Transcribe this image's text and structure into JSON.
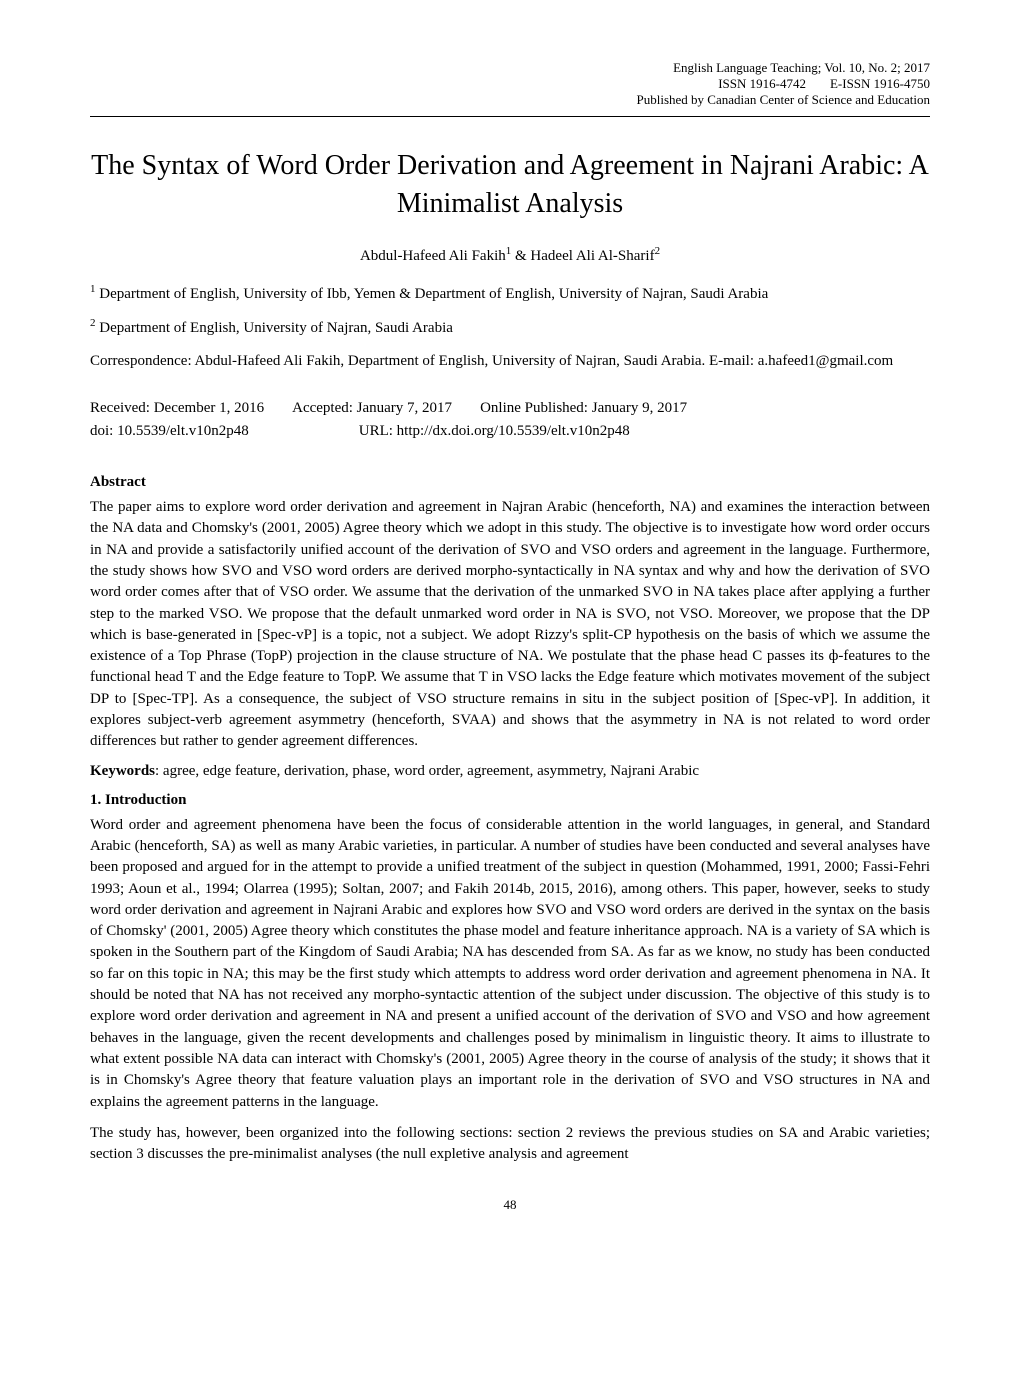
{
  "header": {
    "journal_info": "English Language Teaching; Vol. 10, No. 2; 2017",
    "issn_print_label": "ISSN 1916-4742",
    "issn_online_label": "E-ISSN 1916-4750",
    "publisher": "Published by Canadian Center of Science and Education"
  },
  "title": "The Syntax of Word Order Derivation and Agreement in Najrani Arabic: A Minimalist Analysis",
  "authors": {
    "author1_name": "Abdul-Hafeed Ali Fakih",
    "author1_sup": "1",
    "amp": " & ",
    "author2_name": "Hadeel Ali Al-Sharif",
    "author2_sup": "2"
  },
  "affiliations": {
    "aff1_sup": "1",
    "aff1_text": " Department of English, University of Ibb, Yemen & Department of English, University of Najran, Saudi Arabia",
    "aff2_sup": "2",
    "aff2_text": " Department of English, University of Najran, Saudi Arabia"
  },
  "correspondence": "Correspondence: Abdul-Hafeed Ali Fakih, Department of English, University of Najran, Saudi Arabia. E-mail: a.hafeed1@gmail.com",
  "dates": {
    "received": "Received: December 1, 2016",
    "accepted": "Accepted: January 7, 2017",
    "published": "Online Published: January 9, 2017"
  },
  "doi_line": {
    "doi": "doi: 10.5539/elt.v10n2p48",
    "url": "URL: http://dx.doi.org/10.5539/elt.v10n2p48"
  },
  "abstract": {
    "heading": "Abstract",
    "text": "The paper aims to explore word order derivation and agreement in Najran Arabic (henceforth, NA) and examines the interaction between the NA data and Chomsky's (2001, 2005) Agree theory which we adopt in this study. The objective is to investigate how word order occurs in NA and provide a satisfactorily unified account of the derivation of SVO and VSO orders and agreement in the language. Furthermore, the study shows how SVO and VSO word orders are derived morpho-syntactically in NA syntax and why and how the derivation of SVO word order comes after that of VSO order. We assume that the derivation of the unmarked SVO in NA takes place after applying a further step to the marked VSO. We propose that the default unmarked word order in NA is SVO, not VSO.  Moreover, we propose that the DP which is base-generated in [Spec-vP] is a topic, not a subject. We adopt Rizzy's split-CP hypothesis on the basis of which we assume the existence of a Top Phrase (TopP) projection in the clause structure of NA. We postulate that the phase head C passes its ф-features to the functional head T and the Edge feature to TopP. We assume that T in VSO lacks the Edge feature which motivates movement of the subject DP to [Spec-TP]. As a consequence, the subject of VSO structure remains in situ in the subject position of [Spec-vP]. In addition, it explores subject-verb agreement asymmetry (henceforth, SVAA) and shows that the asymmetry in NA is not related to word order differences but rather to gender agreement differences."
  },
  "keywords": {
    "label": "Keywords",
    "text": ": agree, edge feature, derivation, phase, word order, agreement, asymmetry, Najrani Arabic"
  },
  "introduction": {
    "heading": "1. Introduction",
    "para1": "Word order and agreement phenomena have been the focus of considerable attention in the world languages, in general, and Standard Arabic (henceforth, SA) as well as many Arabic varieties, in particular. A number of studies have been conducted and several analyses have been proposed and argued for in the attempt to provide a unified treatment of the subject in question (Mohammed, 1991, 2000; Fassi-Fehri 1993; Aoun et al., 1994; Olarrea (1995); Soltan, 2007; and Fakih 2014b, 2015, 2016), among others. This paper, however, seeks to study word order derivation and agreement in Najrani Arabic and explores how SVO and VSO word orders are derived in the syntax on the basis of Chomsky' (2001, 2005) Agree theory which constitutes the phase model and feature inheritance approach. NA is a variety of SA which is spoken in the Southern part of the Kingdom of Saudi Arabia; NA has descended from SA. As far as we know, no study has been conducted so far on this topic in NA; this may be the first study which attempts to address word order derivation and agreement phenomena in NA. It should be noted that NA has not received any morpho-syntactic attention of the subject under discussion. The objective of this study is to explore word order derivation and agreement in NA and present a unified account of the derivation of SVO and VSO and how agreement behaves in the language, given the recent developments and challenges posed by minimalism in linguistic theory. It aims to illustrate to what extent possible NA data can interact with Chomsky's (2001, 2005) Agree theory in the course of analysis of the study; it shows that it is in Chomsky's Agree theory that feature valuation plays an important role in the derivation of SVO and VSO structures in NA and explains the agreement patterns in the language.",
    "para2": "The study has, however, been organized into the following sections: section 2 reviews the previous studies on SA and Arabic varieties; section 3 discusses the pre-minimalist analyses (the null expletive analysis and agreement"
  },
  "page_number": "48"
}
